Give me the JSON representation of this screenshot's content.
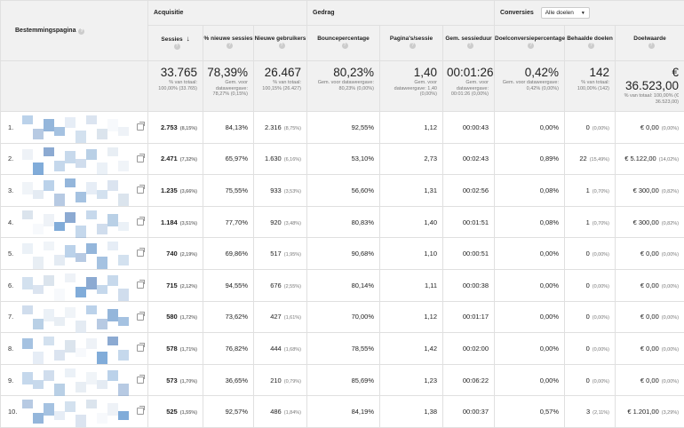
{
  "headers": {
    "landing_page": "Bestemmingspagina",
    "acquisitie": "Acquisitie",
    "gedrag": "Gedrag",
    "conversies": "Conversies",
    "goal_select": "Alle doelen",
    "cols": [
      "Sessies",
      "% nieuwe sessies",
      "Nieuwe gebruikers",
      "Bouncepercentage",
      "Pagina's/sessie",
      "Gem. sessieduur",
      "Doelconversiepercentage",
      "Behaalde doelen",
      "Doelwaarde"
    ],
    "help": "?"
  },
  "totals": [
    {
      "big": "33.765",
      "sm": "% van totaal: 100,00% (33.765)"
    },
    {
      "big": "78,39%",
      "sm": "Gem. voor dataweergave: 78,27% (0,15%)"
    },
    {
      "big": "26.467",
      "sm": "% van totaal: 100,15% (26.427)"
    },
    {
      "big": "80,23%",
      "sm": "Gem. voor dataweergave: 80,23% (0,00%)"
    },
    {
      "big": "1,40",
      "sm": "Gem. voor dataweergave: 1,40 (0,00%)"
    },
    {
      "big": "00:01:26",
      "sm": "Gem. voor dataweergave: 00:01:26 (0,00%)"
    },
    {
      "big": "0,42%",
      "sm": "Gem. voor dataweergave: 0,42% (0,00%)"
    },
    {
      "big": "142",
      "sm": "% van totaal: 100,00% (142)"
    },
    {
      "big": "€ 36.523,00",
      "sm": "% van totaal: 100,00% (€ 36.523,00)"
    }
  ],
  "rows": [
    {
      "idx": "1.",
      "ses": "2.753",
      "ses_p": "(8,15%)",
      "new": "84,13%",
      "nu": "2.316",
      "nu_p": "(8,75%)",
      "bounce": "92,55%",
      "pps": "1,12",
      "dur": "00:00:43",
      "conv": "0,00%",
      "goals": "0",
      "goals_p": "(0,00%)",
      "val": "€ 0,00",
      "val_p": "(0,00%)"
    },
    {
      "idx": "2.",
      "ses": "2.471",
      "ses_p": "(7,32%)",
      "new": "65,97%",
      "nu": "1.630",
      "nu_p": "(6,16%)",
      "bounce": "53,10%",
      "pps": "2,73",
      "dur": "00:02:43",
      "conv": "0,89%",
      "goals": "22",
      "goals_p": "(15,49%)",
      "val": "€ 5.122,00",
      "val_p": "(14,02%)"
    },
    {
      "idx": "3.",
      "ses": "1.235",
      "ses_p": "(3,66%)",
      "new": "75,55%",
      "nu": "933",
      "nu_p": "(3,53%)",
      "bounce": "56,60%",
      "pps": "1,31",
      "dur": "00:02:56",
      "conv": "0,08%",
      "goals": "1",
      "goals_p": "(0,70%)",
      "val": "€ 300,00",
      "val_p": "(0,82%)"
    },
    {
      "idx": "4.",
      "ses": "1.184",
      "ses_p": "(3,51%)",
      "new": "77,70%",
      "nu": "920",
      "nu_p": "(3,48%)",
      "bounce": "80,83%",
      "pps": "1,40",
      "dur": "00:01:51",
      "conv": "0,08%",
      "goals": "1",
      "goals_p": "(0,70%)",
      "val": "€ 300,00",
      "val_p": "(0,82%)"
    },
    {
      "idx": "5.",
      "ses": "740",
      "ses_p": "(2,19%)",
      "new": "69,86%",
      "nu": "517",
      "nu_p": "(1,95%)",
      "bounce": "90,68%",
      "pps": "1,10",
      "dur": "00:00:51",
      "conv": "0,00%",
      "goals": "0",
      "goals_p": "(0,00%)",
      "val": "€ 0,00",
      "val_p": "(0,00%)"
    },
    {
      "idx": "6.",
      "ses": "715",
      "ses_p": "(2,12%)",
      "new": "94,55%",
      "nu": "676",
      "nu_p": "(2,55%)",
      "bounce": "80,14%",
      "pps": "1,11",
      "dur": "00:00:38",
      "conv": "0,00%",
      "goals": "0",
      "goals_p": "(0,00%)",
      "val": "€ 0,00",
      "val_p": "(0,00%)"
    },
    {
      "idx": "7.",
      "ses": "580",
      "ses_p": "(1,72%)",
      "new": "73,62%",
      "nu": "427",
      "nu_p": "(1,61%)",
      "bounce": "70,00%",
      "pps": "1,12",
      "dur": "00:01:17",
      "conv": "0,00%",
      "goals": "0",
      "goals_p": "(0,00%)",
      "val": "€ 0,00",
      "val_p": "(0,00%)"
    },
    {
      "idx": "8.",
      "ses": "578",
      "ses_p": "(1,71%)",
      "new": "76,82%",
      "nu": "444",
      "nu_p": "(1,68%)",
      "bounce": "78,55%",
      "pps": "1,42",
      "dur": "00:02:00",
      "conv": "0,00%",
      "goals": "0",
      "goals_p": "(0,00%)",
      "val": "€ 0,00",
      "val_p": "(0,00%)"
    },
    {
      "idx": "9.",
      "ses": "573",
      "ses_p": "(1,70%)",
      "new": "36,65%",
      "nu": "210",
      "nu_p": "(0,79%)",
      "bounce": "85,69%",
      "pps": "1,23",
      "dur": "00:06:22",
      "conv": "0,00%",
      "goals": "0",
      "goals_p": "(0,00%)",
      "val": "€ 0,00",
      "val_p": "(0,00%)"
    },
    {
      "idx": "10.",
      "ses": "525",
      "ses_p": "(1,55%)",
      "new": "92,57%",
      "nu": "486",
      "nu_p": "(1,84%)",
      "bounce": "84,19%",
      "pps": "1,38",
      "dur": "00:00:37",
      "conv": "0,57%",
      "goals": "3",
      "goals_p": "(2,11%)",
      "val": "€ 1.201,00",
      "val_p": "(3,29%)"
    }
  ]
}
